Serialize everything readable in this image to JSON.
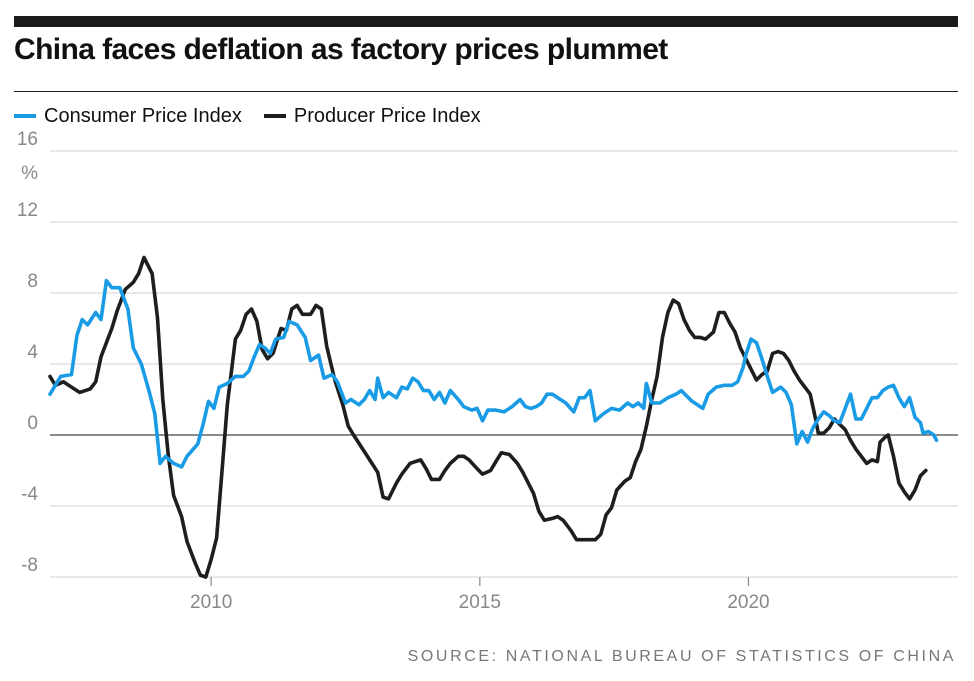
{
  "title": "China faces deflation as factory prices plummet",
  "legend": [
    {
      "label": "Consumer Price Index",
      "color": "#1a9be6"
    },
    {
      "label": "Producer Price Index",
      "color": "#1e1e1e"
    }
  ],
  "source": "SOURCE: NATIONAL BUREAU OF STATISTICS OF CHINA",
  "chart_data": {
    "type": "line",
    "title": "China faces deflation as factory prices plummet",
    "xlabel": "",
    "ylabel": "%",
    "xlim": [
      2007.0,
      2023.9
    ],
    "ylim": [
      -8,
      16
    ],
    "yticks": [
      16,
      12,
      8,
      4,
      0,
      -4,
      -8
    ],
    "xticks": [
      2010,
      2015,
      2020
    ],
    "unit_label": "%",
    "zero_line": true,
    "grid": "horizontal",
    "series": [
      {
        "name": "Consumer Price Index",
        "color": "#1a9be6",
        "points": [
          [
            2007.0,
            2.3
          ],
          [
            2007.2,
            3.3
          ],
          [
            2007.4,
            3.4
          ],
          [
            2007.5,
            5.6
          ],
          [
            2007.6,
            6.5
          ],
          [
            2007.7,
            6.2
          ],
          [
            2007.85,
            6.9
          ],
          [
            2007.95,
            6.5
          ],
          [
            2008.05,
            8.7
          ],
          [
            2008.15,
            8.3
          ],
          [
            2008.3,
            8.3
          ],
          [
            2008.45,
            7.1
          ],
          [
            2008.55,
            4.9
          ],
          [
            2008.7,
            4.0
          ],
          [
            2008.85,
            2.4
          ],
          [
            2008.95,
            1.2
          ],
          [
            2009.05,
            -1.6
          ],
          [
            2009.15,
            -1.2
          ],
          [
            2009.3,
            -1.6
          ],
          [
            2009.45,
            -1.8
          ],
          [
            2009.55,
            -1.2
          ],
          [
            2009.75,
            -0.5
          ],
          [
            2009.85,
            0.6
          ],
          [
            2009.95,
            1.9
          ],
          [
            2010.05,
            1.5
          ],
          [
            2010.15,
            2.7
          ],
          [
            2010.3,
            2.9
          ],
          [
            2010.45,
            3.3
          ],
          [
            2010.6,
            3.3
          ],
          [
            2010.7,
            3.6
          ],
          [
            2010.8,
            4.4
          ],
          [
            2010.9,
            5.1
          ],
          [
            2011.0,
            4.9
          ],
          [
            2011.1,
            4.6
          ],
          [
            2011.2,
            5.4
          ],
          [
            2011.35,
            5.5
          ],
          [
            2011.45,
            6.4
          ],
          [
            2011.6,
            6.2
          ],
          [
            2011.75,
            5.5
          ],
          [
            2011.85,
            4.2
          ],
          [
            2012.0,
            4.5
          ],
          [
            2012.1,
            3.2
          ],
          [
            2012.25,
            3.4
          ],
          [
            2012.35,
            3.0
          ],
          [
            2012.5,
            1.8
          ],
          [
            2012.6,
            2.0
          ],
          [
            2012.75,
            1.7
          ],
          [
            2012.85,
            2.0
          ],
          [
            2012.95,
            2.5
          ],
          [
            2013.05,
            2.0
          ],
          [
            2013.1,
            3.2
          ],
          [
            2013.2,
            2.1
          ],
          [
            2013.3,
            2.4
          ],
          [
            2013.45,
            2.1
          ],
          [
            2013.55,
            2.7
          ],
          [
            2013.65,
            2.6
          ],
          [
            2013.75,
            3.2
          ],
          [
            2013.85,
            3.0
          ],
          [
            2013.95,
            2.5
          ],
          [
            2014.05,
            2.5
          ],
          [
            2014.15,
            2.0
          ],
          [
            2014.25,
            2.4
          ],
          [
            2014.35,
            1.8
          ],
          [
            2014.45,
            2.5
          ],
          [
            2014.6,
            2.0
          ],
          [
            2014.7,
            1.6
          ],
          [
            2014.85,
            1.4
          ],
          [
            2014.95,
            1.5
          ],
          [
            2015.05,
            0.8
          ],
          [
            2015.15,
            1.4
          ],
          [
            2015.3,
            1.4
          ],
          [
            2015.45,
            1.3
          ],
          [
            2015.6,
            1.6
          ],
          [
            2015.75,
            2.0
          ],
          [
            2015.85,
            1.6
          ],
          [
            2015.95,
            1.5
          ],
          [
            2016.05,
            1.6
          ],
          [
            2016.15,
            1.8
          ],
          [
            2016.25,
            2.3
          ],
          [
            2016.35,
            2.3
          ],
          [
            2016.5,
            2.0
          ],
          [
            2016.6,
            1.8
          ],
          [
            2016.75,
            1.3
          ],
          [
            2016.85,
            2.1
          ],
          [
            2016.95,
            2.1
          ],
          [
            2017.05,
            2.5
          ],
          [
            2017.15,
            0.8
          ],
          [
            2017.3,
            1.2
          ],
          [
            2017.45,
            1.5
          ],
          [
            2017.6,
            1.4
          ],
          [
            2017.75,
            1.8
          ],
          [
            2017.85,
            1.6
          ],
          [
            2017.95,
            1.8
          ],
          [
            2018.05,
            1.5
          ],
          [
            2018.1,
            2.9
          ],
          [
            2018.2,
            1.8
          ],
          [
            2018.35,
            1.8
          ],
          [
            2018.5,
            2.1
          ],
          [
            2018.65,
            2.3
          ],
          [
            2018.75,
            2.5
          ],
          [
            2018.85,
            2.2
          ],
          [
            2018.95,
            1.9
          ],
          [
            2019.05,
            1.7
          ],
          [
            2019.15,
            1.5
          ],
          [
            2019.25,
            2.3
          ],
          [
            2019.4,
            2.7
          ],
          [
            2019.55,
            2.8
          ],
          [
            2019.7,
            2.8
          ],
          [
            2019.8,
            3.0
          ],
          [
            2019.9,
            3.8
          ],
          [
            2019.95,
            4.5
          ],
          [
            2020.05,
            5.4
          ],
          [
            2020.15,
            5.2
          ],
          [
            2020.25,
            4.3
          ],
          [
            2020.35,
            3.3
          ],
          [
            2020.45,
            2.4
          ],
          [
            2020.6,
            2.7
          ],
          [
            2020.7,
            2.4
          ],
          [
            2020.8,
            1.7
          ],
          [
            2020.9,
            -0.5
          ],
          [
            2021.0,
            0.2
          ],
          [
            2021.1,
            -0.4
          ],
          [
            2021.2,
            0.4
          ],
          [
            2021.3,
            0.9
          ],
          [
            2021.4,
            1.3
          ],
          [
            2021.5,
            1.1
          ],
          [
            2021.6,
            0.8
          ],
          [
            2021.7,
            0.7
          ],
          [
            2021.8,
            1.5
          ],
          [
            2021.9,
            2.3
          ],
          [
            2022.0,
            0.9
          ],
          [
            2022.1,
            0.9
          ],
          [
            2022.2,
            1.5
          ],
          [
            2022.3,
            2.1
          ],
          [
            2022.4,
            2.1
          ],
          [
            2022.5,
            2.5
          ],
          [
            2022.6,
            2.7
          ],
          [
            2022.7,
            2.8
          ],
          [
            2022.8,
            2.1
          ],
          [
            2022.9,
            1.6
          ],
          [
            2023.0,
            2.1
          ],
          [
            2023.1,
            1.0
          ],
          [
            2023.2,
            0.7
          ],
          [
            2023.25,
            0.1
          ],
          [
            2023.35,
            0.2
          ],
          [
            2023.45,
            0.0
          ],
          [
            2023.5,
            -0.3
          ]
        ]
      },
      {
        "name": "Producer Price Index",
        "color": "#1e1e1e",
        "points": [
          [
            2007.0,
            3.3
          ],
          [
            2007.1,
            2.8
          ],
          [
            2007.25,
            3.0
          ],
          [
            2007.4,
            2.7
          ],
          [
            2007.55,
            2.4
          ],
          [
            2007.75,
            2.6
          ],
          [
            2007.85,
            3.0
          ],
          [
            2007.95,
            4.4
          ],
          [
            2008.15,
            6.0
          ],
          [
            2008.25,
            7.0
          ],
          [
            2008.4,
            8.2
          ],
          [
            2008.55,
            8.6
          ],
          [
            2008.65,
            9.1
          ],
          [
            2008.75,
            10.0
          ],
          [
            2008.9,
            9.1
          ],
          [
            2009.0,
            6.6
          ],
          [
            2009.1,
            2.0
          ],
          [
            2009.2,
            -1.1
          ],
          [
            2009.3,
            -3.4
          ],
          [
            2009.45,
            -4.6
          ],
          [
            2009.55,
            -6.0
          ],
          [
            2009.7,
            -7.2
          ],
          [
            2009.8,
            -7.9
          ],
          [
            2009.9,
            -8.0
          ],
          [
            2010.0,
            -7.0
          ],
          [
            2010.1,
            -5.8
          ],
          [
            2010.2,
            -2.1
          ],
          [
            2010.3,
            1.7
          ],
          [
            2010.45,
            5.4
          ],
          [
            2010.55,
            5.9
          ],
          [
            2010.65,
            6.8
          ],
          [
            2010.75,
            7.1
          ],
          [
            2010.85,
            6.4
          ],
          [
            2010.95,
            4.8
          ],
          [
            2011.05,
            4.3
          ],
          [
            2011.15,
            4.6
          ],
          [
            2011.3,
            6.0
          ],
          [
            2011.4,
            5.9
          ],
          [
            2011.5,
            7.1
          ],
          [
            2011.6,
            7.3
          ],
          [
            2011.7,
            6.8
          ],
          [
            2011.85,
            6.8
          ],
          [
            2011.95,
            7.3
          ],
          [
            2012.05,
            7.1
          ],
          [
            2012.15,
            5.0
          ],
          [
            2012.3,
            3.1
          ],
          [
            2012.45,
            1.7
          ],
          [
            2012.55,
            0.5
          ],
          [
            2012.65,
            0.0
          ],
          [
            2012.8,
            -0.7
          ],
          [
            2012.95,
            -1.4
          ],
          [
            2013.1,
            -2.1
          ],
          [
            2013.2,
            -3.5
          ],
          [
            2013.3,
            -3.6
          ],
          [
            2013.45,
            -2.7
          ],
          [
            2013.55,
            -2.2
          ],
          [
            2013.7,
            -1.6
          ],
          [
            2013.8,
            -1.5
          ],
          [
            2013.9,
            -1.4
          ],
          [
            2014.0,
            -1.9
          ],
          [
            2014.1,
            -2.5
          ],
          [
            2014.25,
            -2.5
          ],
          [
            2014.35,
            -2.0
          ],
          [
            2014.45,
            -1.6
          ],
          [
            2014.6,
            -1.2
          ],
          [
            2014.7,
            -1.2
          ],
          [
            2014.8,
            -1.4
          ],
          [
            2014.95,
            -1.9
          ],
          [
            2015.05,
            -2.2
          ],
          [
            2015.2,
            -2.0
          ],
          [
            2015.3,
            -1.5
          ],
          [
            2015.4,
            -1.0
          ],
          [
            2015.55,
            -1.1
          ],
          [
            2015.7,
            -1.6
          ],
          [
            2015.8,
            -2.1
          ],
          [
            2015.9,
            -2.7
          ],
          [
            2016.0,
            -3.3
          ],
          [
            2016.1,
            -4.3
          ],
          [
            2016.2,
            -4.8
          ],
          [
            2016.35,
            -4.7
          ],
          [
            2016.45,
            -4.6
          ],
          [
            2016.55,
            -4.8
          ],
          [
            2016.7,
            -5.4
          ],
          [
            2016.8,
            -5.9
          ],
          [
            2016.95,
            -5.9
          ],
          [
            2017.05,
            -5.9
          ],
          [
            2017.15,
            -5.9
          ],
          [
            2017.25,
            -5.6
          ],
          [
            2017.35,
            -4.5
          ],
          [
            2017.45,
            -4.1
          ],
          [
            2017.55,
            -3.1
          ],
          [
            2017.7,
            -2.6
          ],
          [
            2017.8,
            -2.4
          ],
          [
            2017.9,
            -1.5
          ],
          [
            2018.0,
            -0.8
          ],
          [
            2018.1,
            0.5
          ],
          [
            2018.2,
            2.0
          ],
          [
            2018.3,
            3.3
          ],
          [
            2018.4,
            5.5
          ],
          [
            2018.5,
            6.9
          ],
          [
            2018.6,
            7.6
          ],
          [
            2018.7,
            7.4
          ],
          [
            2018.8,
            6.5
          ],
          [
            2018.9,
            5.9
          ],
          [
            2019.0,
            5.5
          ],
          [
            2019.1,
            5.5
          ],
          [
            2019.2,
            5.4
          ],
          [
            2019.35,
            5.8
          ],
          [
            2019.45,
            6.9
          ],
          [
            2019.55,
            6.9
          ],
          [
            2019.65,
            6.3
          ],
          [
            2019.75,
            5.8
          ],
          [
            2019.85,
            4.9
          ],
          [
            2019.95,
            4.3
          ],
          [
            2020.05,
            3.7
          ],
          [
            2020.15,
            3.1
          ],
          [
            2020.25,
            3.4
          ],
          [
            2020.35,
            3.6
          ],
          [
            2020.45,
            4.6
          ],
          [
            2020.55,
            4.7
          ],
          [
            2020.65,
            4.6
          ],
          [
            2020.75,
            4.2
          ],
          [
            2020.85,
            3.6
          ],
          [
            2020.95,
            3.1
          ],
          [
            2021.05,
            2.7
          ],
          [
            2021.15,
            2.3
          ],
          [
            2021.25,
            0.9
          ],
          [
            2021.3,
            0.1
          ],
          [
            2021.4,
            0.1
          ],
          [
            2021.5,
            0.4
          ],
          [
            2021.6,
            0.9
          ],
          [
            2021.7,
            0.6
          ],
          [
            2021.8,
            0.3
          ],
          [
            2021.9,
            -0.3
          ],
          [
            2022.0,
            -0.8
          ],
          [
            2022.1,
            -1.2
          ],
          [
            2022.2,
            -1.6
          ],
          [
            2022.3,
            -1.4
          ],
          [
            2022.4,
            -1.5
          ],
          [
            2022.45,
            -0.4
          ],
          [
            2022.55,
            -0.1
          ],
          [
            2022.6,
            0.0
          ],
          [
            2022.7,
            -1.2
          ],
          [
            2022.8,
            -2.7
          ],
          [
            2022.9,
            -3.2
          ],
          [
            2023.0,
            -3.6
          ],
          [
            2023.1,
            -3.1
          ],
          [
            2023.2,
            -2.3
          ],
          [
            2023.3,
            -2.0
          ]
        ]
      }
    ]
  }
}
